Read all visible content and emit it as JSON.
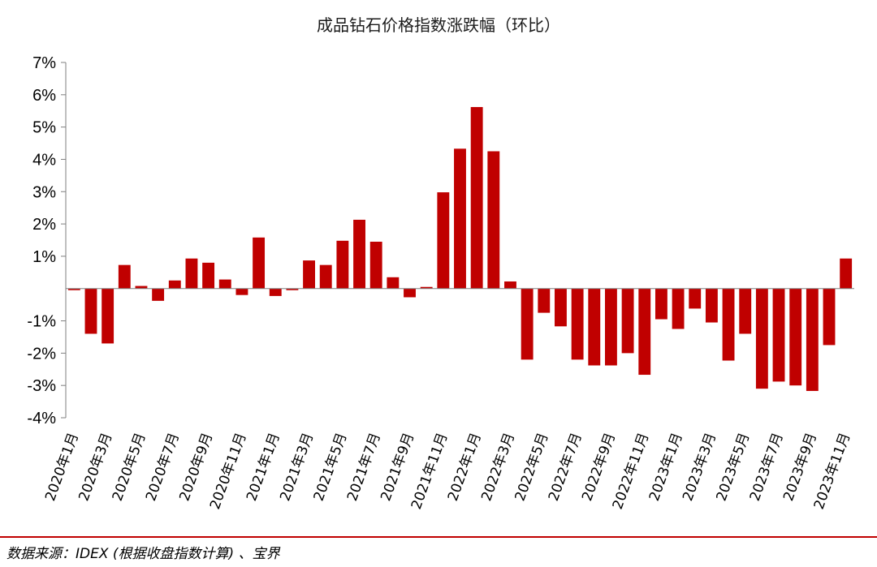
{
  "chart_data": {
    "type": "bar",
    "title": "成品钻石价格指数涨跌幅（环比）",
    "xlabel": "",
    "ylabel": "",
    "ylim": [
      -4,
      7
    ],
    "y_tick_labels": [
      "7%",
      "6%",
      "5%",
      "4%",
      "3%",
      "2%",
      "1%",
      "-1%",
      "-2%",
      "-3%",
      "-4%"
    ],
    "grid": false,
    "bar_color": "#c00000",
    "categories": [
      "2020年1月",
      "2020年2月",
      "2020年3月",
      "2020年4月",
      "2020年5月",
      "2020年6月",
      "2020年7月",
      "2020年8月",
      "2020年9月",
      "2020年10月",
      "2020年11月",
      "2020年12月",
      "2021年1月",
      "2021年2月",
      "2021年3月",
      "2021年4月",
      "2021年5月",
      "2021年6月",
      "2021年7月",
      "2021年8月",
      "2021年9月",
      "2021年10月",
      "2021年11月",
      "2021年12月",
      "2022年1月",
      "2022年2月",
      "2022年3月",
      "2022年4月",
      "2022年5月",
      "2022年6月",
      "2022年7月",
      "2022年8月",
      "2022年9月",
      "2022年10月",
      "2022年11月",
      "2022年12月",
      "2023年1月",
      "2023年2月",
      "2023年3月",
      "2023年4月",
      "2023年5月",
      "2023年6月",
      "2023年7月",
      "2023年8月",
      "2023年9月",
      "2023年10月",
      "2023年11月"
    ],
    "labeled_categories": [
      "2020年1月",
      "2020年3月",
      "2020年5月",
      "2020年7月",
      "2020年9月",
      "2020年11月",
      "2021年1月",
      "2021年3月",
      "2021年5月",
      "2021年7月",
      "2021年9月",
      "2021年11月",
      "2022年1月",
      "2022年3月",
      "2022年5月",
      "2022年7月",
      "2022年9月",
      "2022年11月",
      "2023年1月",
      "2023年3月",
      "2023年5月",
      "2023年7月",
      "2023年9月",
      "2023年11月"
    ],
    "values": [
      -0.05,
      -1.4,
      -1.7,
      0.73,
      0.08,
      -0.38,
      0.25,
      0.93,
      0.8,
      0.28,
      -0.2,
      1.58,
      -0.23,
      -0.05,
      0.87,
      0.73,
      1.48,
      2.13,
      1.45,
      0.35,
      -0.27,
      0.05,
      2.98,
      4.33,
      5.62,
      4.25,
      0.22,
      -2.2,
      -0.75,
      -1.17,
      -2.2,
      -2.38,
      -2.38,
      -2.0,
      -2.67,
      -0.95,
      -1.25,
      -0.62,
      -1.05,
      -2.23,
      -1.4,
      -3.1,
      -2.88,
      -3.0,
      -3.17,
      -1.75,
      0.93
    ]
  },
  "footer": {
    "source": "数据来源：IDEX (根据收盘指数计算) 、宝界"
  }
}
